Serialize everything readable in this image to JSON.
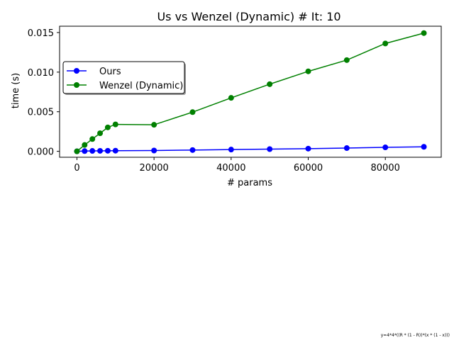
{
  "chart_data": {
    "type": "line",
    "title": "Us vs Wenzel (Dynamic) # It: 10",
    "xlabel": "# params",
    "ylabel": "time (s)",
    "xlim": [
      -4500,
      94500
    ],
    "ylim": [
      -0.00075,
      0.0158
    ],
    "xticks": [
      0,
      20000,
      40000,
      60000,
      80000
    ],
    "xtick_labels": [
      "0",
      "20000",
      "40000",
      "60000",
      "80000"
    ],
    "yticks": [
      0.0,
      0.005,
      0.01,
      0.015
    ],
    "ytick_labels": [
      "0.000",
      "0.005",
      "0.010",
      "0.015"
    ],
    "grid": false,
    "legend_position": "upper-left",
    "x": [
      0,
      2000,
      4000,
      6000,
      8000,
      10000,
      20000,
      30000,
      40000,
      50000,
      60000,
      70000,
      80000,
      90000
    ],
    "series": [
      {
        "name": "Ours",
        "color": "#0000ff",
        "marker": "circle",
        "values": [
          0.0,
          3e-05,
          5e-05,
          6e-05,
          7e-05,
          8e-05,
          0.0001,
          0.00016,
          0.00022,
          0.00028,
          0.00034,
          0.00041,
          0.0005,
          0.00057
        ]
      },
      {
        "name": "Wenzel (Dynamic)",
        "color": "#008000",
        "marker": "circle",
        "values": [
          0.0,
          0.0008,
          0.00155,
          0.00228,
          0.00302,
          0.0034,
          0.00335,
          0.00495,
          0.00675,
          0.00848,
          0.0101,
          0.01152,
          0.01362,
          0.01493
        ]
      }
    ],
    "footnote": "y=4*4*((R * (1 - R))*(x * (1 - x)))"
  }
}
